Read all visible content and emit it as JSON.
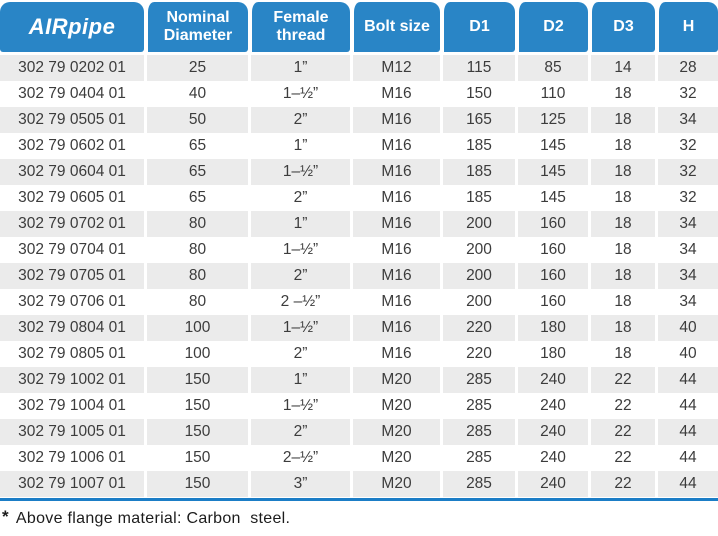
{
  "colors": {
    "header_blue": "#2985c6",
    "rule_blue": "#1b7dc6",
    "stripe_gray": "#ebebeb"
  },
  "header": {
    "logo_air": "AIR",
    "logo_pipe": "pipe",
    "columns": [
      "Nominal Diameter",
      "Female thread",
      "Bolt size",
      "D1",
      "D2",
      "D3",
      "H"
    ]
  },
  "table": {
    "column_keys": [
      "part",
      "nominal",
      "thread",
      "bolt",
      "d1",
      "d2",
      "d3",
      "h"
    ],
    "rows": [
      {
        "part": "302 79 0202 01",
        "nominal": "25",
        "thread": "1”",
        "bolt": "M12",
        "d1": "115",
        "d2": "85",
        "d3": "14",
        "h": "28"
      },
      {
        "part": "302 79 0404 01",
        "nominal": "40",
        "thread": "1–½”",
        "bolt": "M16",
        "d1": "150",
        "d2": "110",
        "d3": "18",
        "h": "32"
      },
      {
        "part": "302 79 0505 01",
        "nominal": "50",
        "thread": "2”",
        "bolt": "M16",
        "d1": "165",
        "d2": "125",
        "d3": "18",
        "h": "34"
      },
      {
        "part": "302 79 0602 01",
        "nominal": "65",
        "thread": "1”",
        "bolt": "M16",
        "d1": "185",
        "d2": "145",
        "d3": "18",
        "h": "32"
      },
      {
        "part": "302 79 0604 01",
        "nominal": "65",
        "thread": "1–½”",
        "bolt": "M16",
        "d1": "185",
        "d2": "145",
        "d3": "18",
        "h": "32"
      },
      {
        "part": "302 79 0605 01",
        "nominal": "65",
        "thread": "2”",
        "bolt": "M16",
        "d1": "185",
        "d2": "145",
        "d3": "18",
        "h": "32"
      },
      {
        "part": "302 79 0702 01",
        "nominal": "80",
        "thread": "1”",
        "bolt": "M16",
        "d1": "200",
        "d2": "160",
        "d3": "18",
        "h": "34"
      },
      {
        "part": "302 79 0704 01",
        "nominal": "80",
        "thread": "1–½”",
        "bolt": "M16",
        "d1": "200",
        "d2": "160",
        "d3": "18",
        "h": "34"
      },
      {
        "part": "302 79 0705 01",
        "nominal": "80",
        "thread": "2”",
        "bolt": "M16",
        "d1": "200",
        "d2": "160",
        "d3": "18",
        "h": "34"
      },
      {
        "part": "302 79 0706 01",
        "nominal": "80",
        "thread": "2 –½”",
        "bolt": "M16",
        "d1": "200",
        "d2": "160",
        "d3": "18",
        "h": "34"
      },
      {
        "part": "302 79 0804 01",
        "nominal": "100",
        "thread": "1–½”",
        "bolt": "M16",
        "d1": "220",
        "d2": "180",
        "d3": "18",
        "h": "40"
      },
      {
        "part": "302 79 0805 01",
        "nominal": "100",
        "thread": "2”",
        "bolt": "M16",
        "d1": "220",
        "d2": "180",
        "d3": "18",
        "h": "40"
      },
      {
        "part": "302 79 1002 01",
        "nominal": "150",
        "thread": "1”",
        "bolt": "M20",
        "d1": "285",
        "d2": "240",
        "d3": "22",
        "h": "44"
      },
      {
        "part": "302 79 1004 01",
        "nominal": "150",
        "thread": "1–½”",
        "bolt": "M20",
        "d1": "285",
        "d2": "240",
        "d3": "22",
        "h": "44"
      },
      {
        "part": "302 79 1005 01",
        "nominal": "150",
        "thread": "2”",
        "bolt": "M20",
        "d1": "285",
        "d2": "240",
        "d3": "22",
        "h": "44"
      },
      {
        "part": "302 79 1006 01",
        "nominal": "150",
        "thread": "2–½”",
        "bolt": "M20",
        "d1": "285",
        "d2": "240",
        "d3": "22",
        "h": "44"
      },
      {
        "part": "302 79 1007 01",
        "nominal": "150",
        "thread": "3”",
        "bolt": "M20",
        "d1": "285",
        "d2": "240",
        "d3": "22",
        "h": "44"
      }
    ]
  },
  "footnote": {
    "marker": "*",
    "text": "Above flange material: Carbon  steel."
  }
}
